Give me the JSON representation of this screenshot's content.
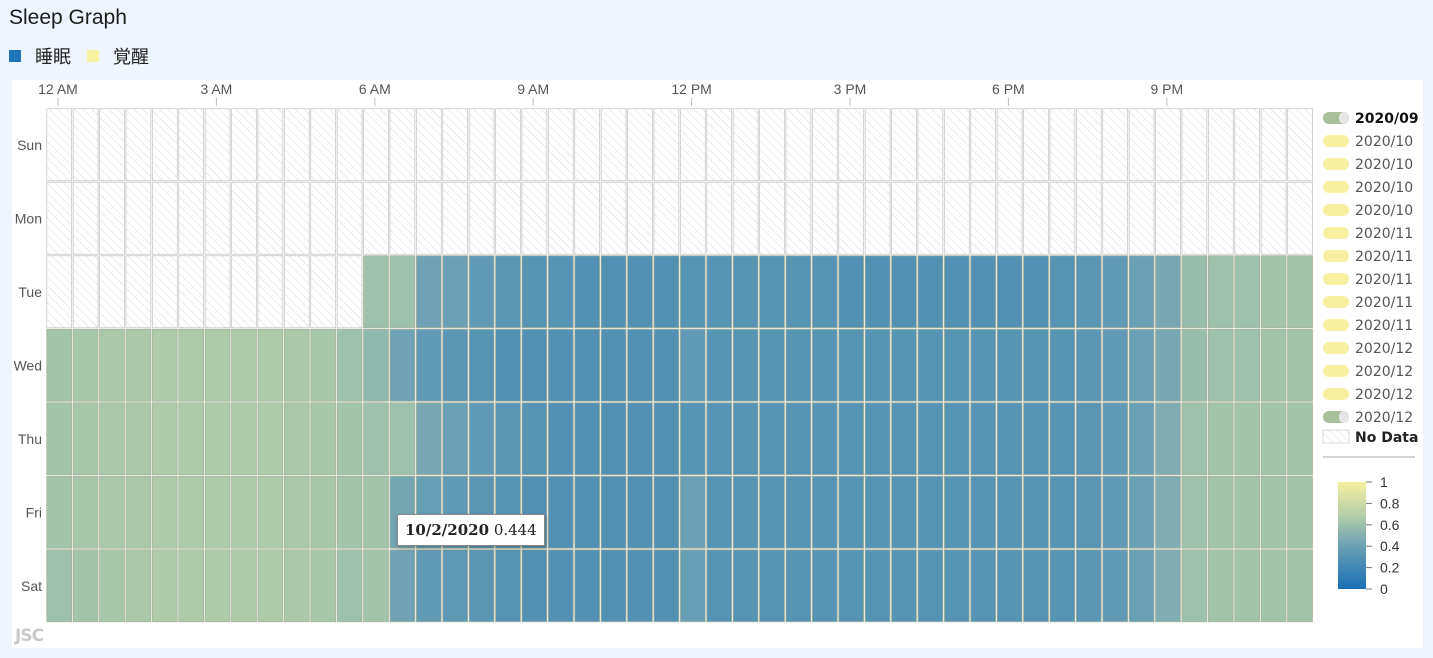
{
  "page": {
    "title": "Sleep Graph"
  },
  "legend_top": [
    {
      "label": "睡眠",
      "color": "#1f73b7"
    },
    {
      "label": "覚醒",
      "color": "#f7f0a0"
    }
  ],
  "tooltip": {
    "date": "10/2/2020",
    "value": "0.444"
  },
  "watermark": "JSC",
  "chart_data": {
    "type": "heatmap",
    "title": "Sleep Graph",
    "x_tick_labels": [
      "12 AM",
      "3 AM",
      "6 AM",
      "9 AM",
      "12 PM",
      "3 PM",
      "6 PM",
      "9 PM"
    ],
    "x_slots_per_day": 48,
    "y_categories": [
      "Sun",
      "Mon",
      "Tue",
      "Wed",
      "Thu",
      "Fri",
      "Sat"
    ],
    "colorscale": {
      "min": 0,
      "max": 1,
      "ticks": [
        "1",
        "0.8",
        "0.6",
        "0.4",
        "0.2",
        "0"
      ],
      "colors": [
        "#1a6fb5",
        "#6aa0b4",
        "#b8d0a8",
        "#f5f0a0"
      ]
    },
    "no_data_label": "No Data",
    "months_legend": [
      {
        "label": "2020/09",
        "bold": true,
        "swatch": "gray"
      },
      {
        "label": "2020/10",
        "bold": false,
        "swatch": "yellow"
      },
      {
        "label": "2020/10",
        "bold": false,
        "swatch": "yellow"
      },
      {
        "label": "2020/10",
        "bold": false,
        "swatch": "yellow"
      },
      {
        "label": "2020/10",
        "bold": false,
        "swatch": "yellow"
      },
      {
        "label": "2020/11",
        "bold": false,
        "swatch": "yellow"
      },
      {
        "label": "2020/11",
        "bold": false,
        "swatch": "yellow"
      },
      {
        "label": "2020/11",
        "bold": false,
        "swatch": "yellow"
      },
      {
        "label": "2020/11",
        "bold": false,
        "swatch": "yellow"
      },
      {
        "label": "2020/11",
        "bold": false,
        "swatch": "yellow"
      },
      {
        "label": "2020/12",
        "bold": false,
        "swatch": "yellow"
      },
      {
        "label": "2020/12",
        "bold": false,
        "swatch": "yellow"
      },
      {
        "label": "2020/12",
        "bold": false,
        "swatch": "yellow"
      },
      {
        "label": "2020/12",
        "bold": false,
        "swatch": "gray"
      }
    ],
    "rows": {
      "Sun": [
        null,
        null,
        null,
        null,
        null,
        null,
        null,
        null,
        null,
        null,
        null,
        null,
        null,
        null,
        null,
        null,
        null,
        null,
        null,
        null,
        null,
        null,
        null,
        null,
        null,
        null,
        null,
        null,
        null,
        null,
        null,
        null,
        null,
        null,
        null,
        null,
        null,
        null,
        null,
        null,
        null,
        null,
        null,
        null,
        null,
        null,
        null,
        null
      ],
      "Mon": [
        null,
        null,
        null,
        null,
        null,
        null,
        null,
        null,
        null,
        null,
        null,
        null,
        null,
        null,
        null,
        null,
        null,
        null,
        null,
        null,
        null,
        null,
        null,
        null,
        null,
        null,
        null,
        null,
        null,
        null,
        null,
        null,
        null,
        null,
        null,
        null,
        null,
        null,
        null,
        null,
        null,
        null,
        null,
        null,
        null,
        null,
        null,
        null
      ],
      "Tue": [
        null,
        null,
        null,
        null,
        null,
        null,
        null,
        null,
        null,
        null,
        null,
        null,
        0.6,
        0.6,
        0.42,
        0.4,
        0.35,
        0.32,
        0.3,
        0.3,
        0.28,
        0.28,
        0.28,
        0.28,
        0.3,
        0.3,
        0.3,
        0.3,
        0.3,
        0.3,
        0.28,
        0.28,
        0.28,
        0.28,
        0.28,
        0.28,
        0.28,
        0.28,
        0.3,
        0.32,
        0.35,
        0.4,
        0.45,
        0.58,
        0.6,
        0.6,
        0.62,
        0.62
      ],
      "Wed": [
        0.62,
        0.64,
        0.65,
        0.65,
        0.66,
        0.66,
        0.66,
        0.66,
        0.66,
        0.65,
        0.64,
        0.6,
        0.55,
        0.42,
        0.35,
        0.32,
        0.3,
        0.28,
        0.28,
        0.28,
        0.28,
        0.28,
        0.28,
        0.28,
        0.35,
        0.3,
        0.3,
        0.3,
        0.3,
        0.3,
        0.3,
        0.3,
        0.3,
        0.3,
        0.3,
        0.3,
        0.3,
        0.3,
        0.3,
        0.32,
        0.35,
        0.4,
        0.45,
        0.58,
        0.6,
        0.6,
        0.62,
        0.62
      ],
      "Thu": [
        0.62,
        0.64,
        0.65,
        0.65,
        0.66,
        0.66,
        0.66,
        0.66,
        0.66,
        0.65,
        0.64,
        0.62,
        0.6,
        0.6,
        0.45,
        0.4,
        0.35,
        0.32,
        0.3,
        0.28,
        0.28,
        0.28,
        0.28,
        0.28,
        0.3,
        0.3,
        0.3,
        0.3,
        0.3,
        0.3,
        0.3,
        0.3,
        0.3,
        0.3,
        0.3,
        0.3,
        0.3,
        0.3,
        0.3,
        0.32,
        0.35,
        0.4,
        0.48,
        0.6,
        0.62,
        0.62,
        0.62,
        0.62
      ],
      "Fri": [
        0.62,
        0.64,
        0.65,
        0.65,
        0.66,
        0.66,
        0.66,
        0.66,
        0.66,
        0.65,
        0.64,
        0.62,
        0.62,
        0.44,
        0.38,
        0.35,
        0.32,
        0.3,
        0.28,
        0.28,
        0.28,
        0.28,
        0.28,
        0.28,
        0.4,
        0.3,
        0.3,
        0.3,
        0.3,
        0.3,
        0.3,
        0.3,
        0.3,
        0.3,
        0.3,
        0.3,
        0.3,
        0.3,
        0.3,
        0.32,
        0.35,
        0.4,
        0.48,
        0.6,
        0.62,
        0.62,
        0.62,
        0.62
      ],
      "Sat": [
        0.6,
        0.62,
        0.64,
        0.65,
        0.66,
        0.66,
        0.66,
        0.66,
        0.66,
        0.65,
        0.64,
        0.6,
        0.62,
        0.42,
        0.36,
        0.34,
        0.32,
        0.3,
        0.28,
        0.28,
        0.28,
        0.28,
        0.28,
        0.28,
        0.38,
        0.3,
        0.3,
        0.3,
        0.3,
        0.3,
        0.3,
        0.3,
        0.3,
        0.3,
        0.3,
        0.3,
        0.3,
        0.3,
        0.3,
        0.32,
        0.35,
        0.4,
        0.48,
        0.6,
        0.62,
        0.62,
        0.62,
        0.62
      ]
    }
  }
}
